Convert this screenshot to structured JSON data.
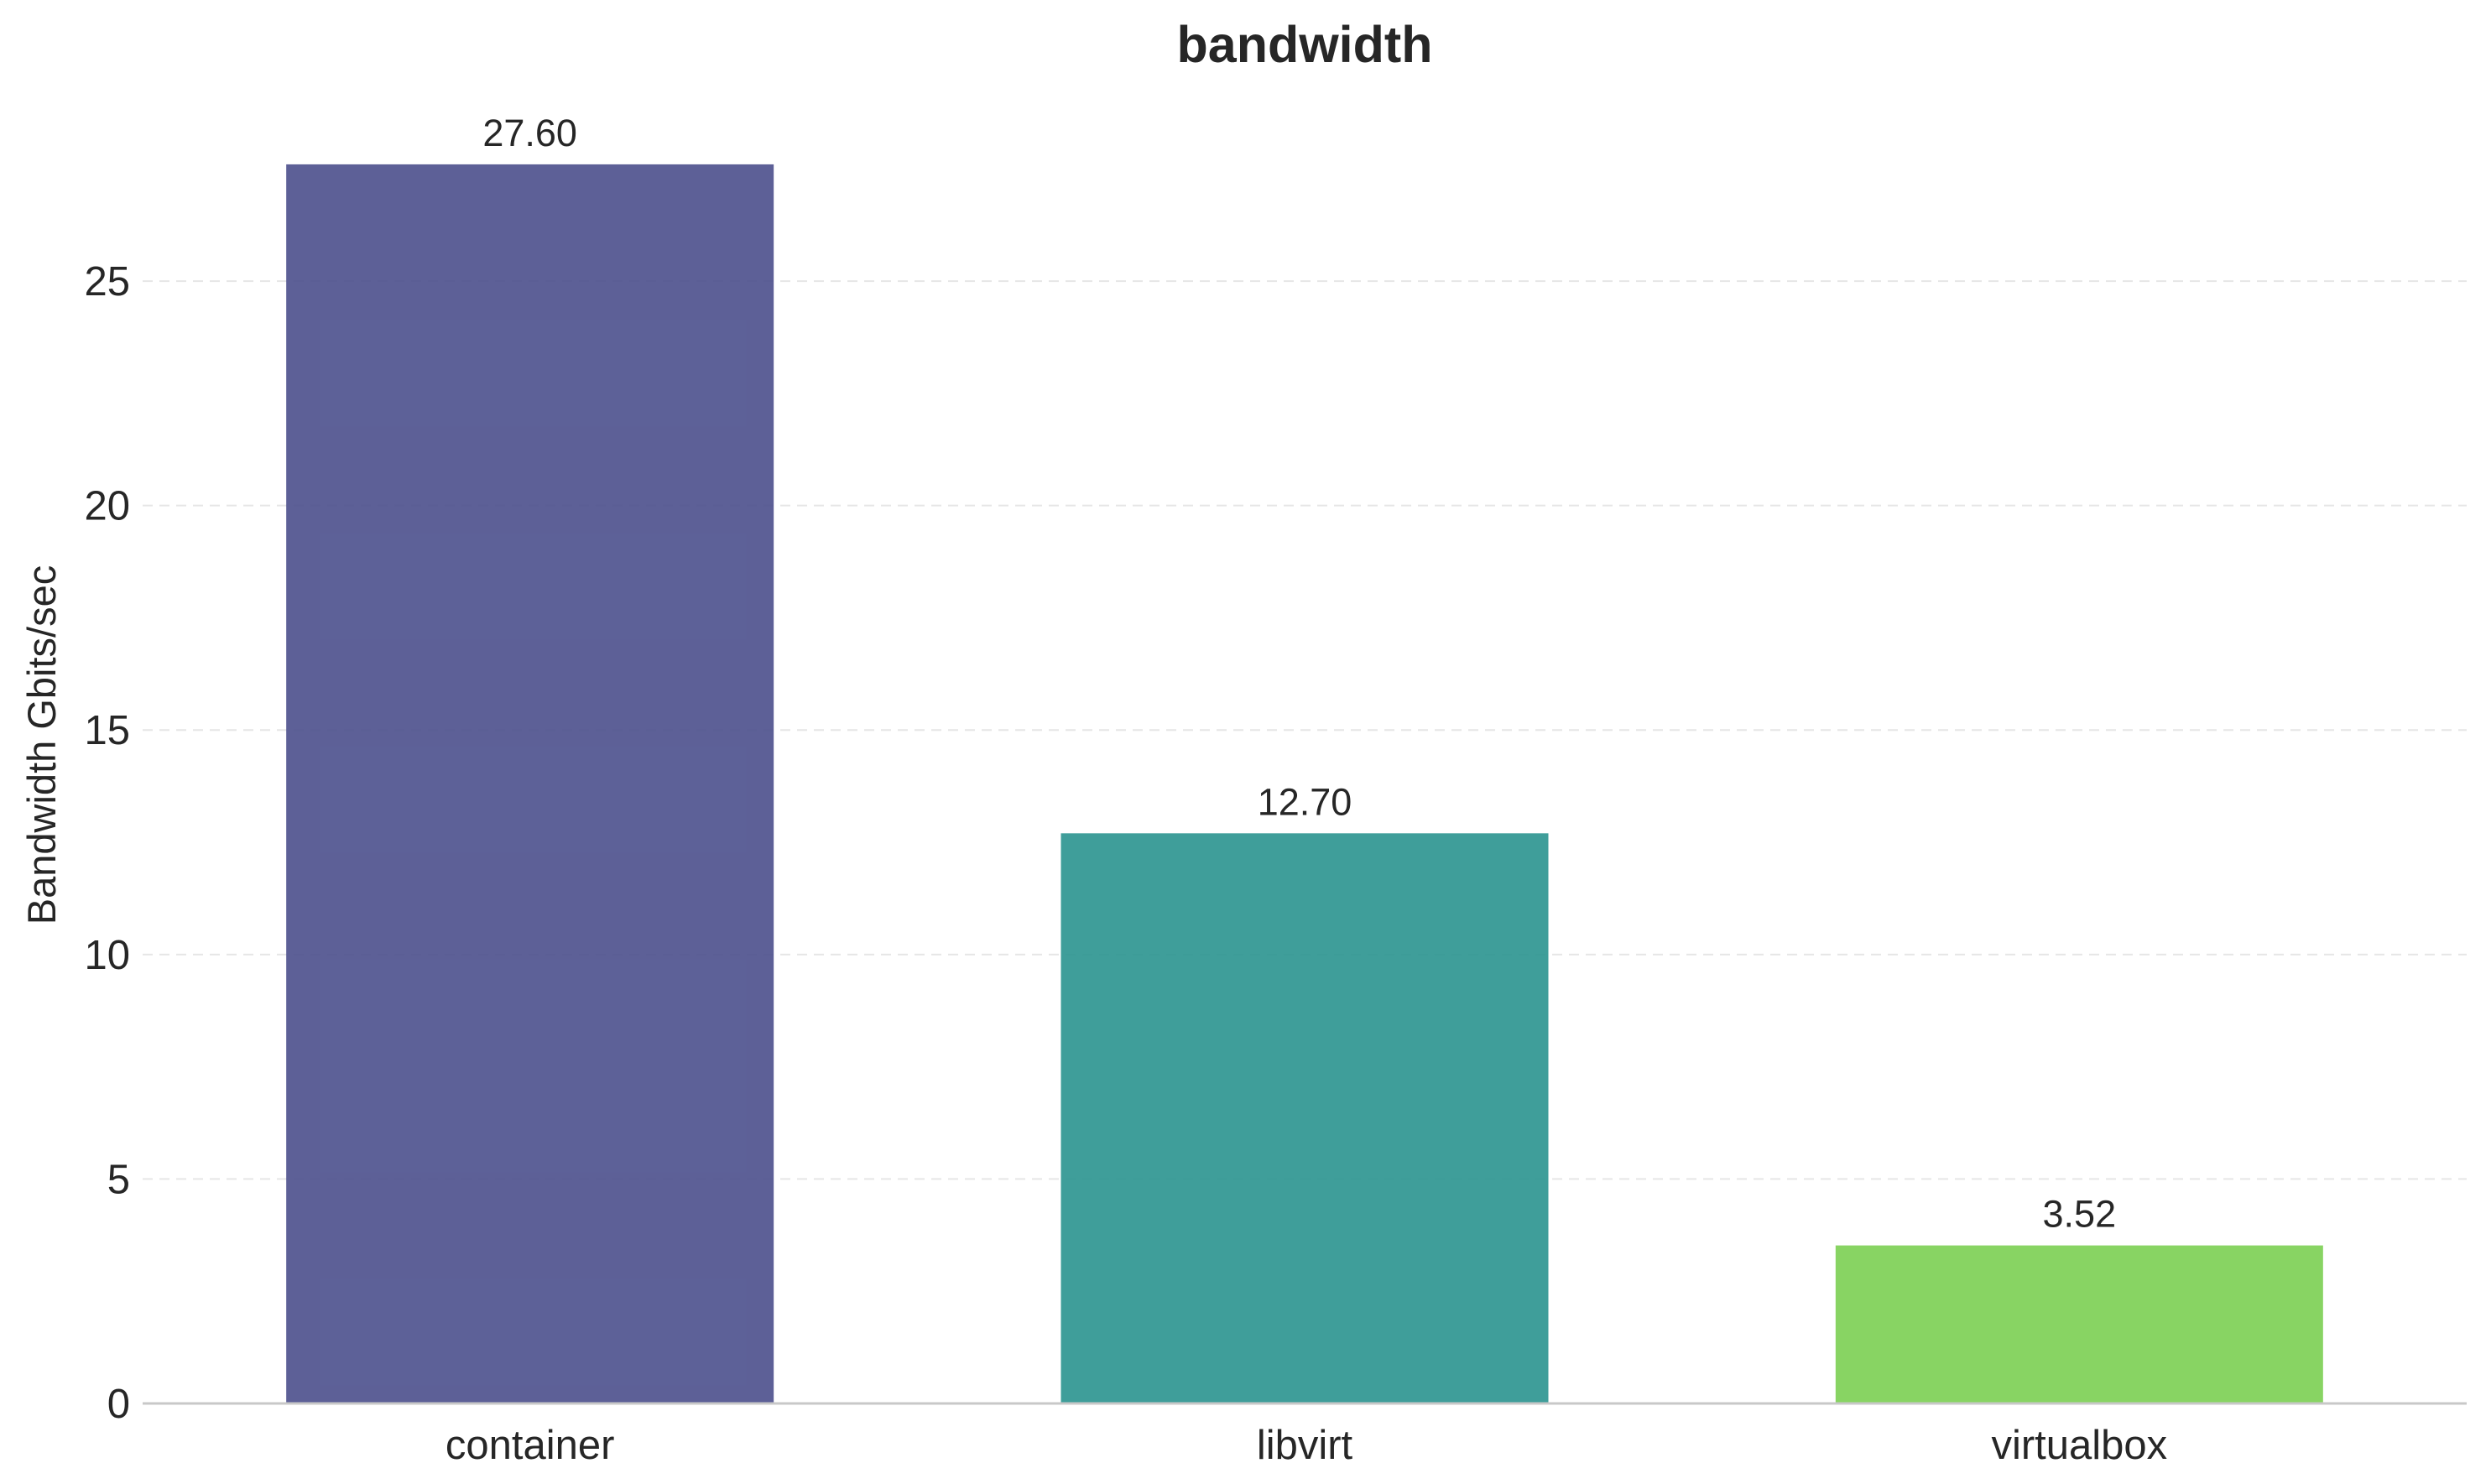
{
  "chart_data": {
    "type": "bar",
    "title": "bandwidth",
    "xlabel": "",
    "ylabel": "Bandwidth Gbits/sec",
    "categories": [
      "container",
      "libvirt",
      "virtualbox"
    ],
    "values": [
      27.6,
      12.7,
      3.52
    ],
    "value_labels": [
      "27.60",
      "12.70",
      "3.52"
    ],
    "colors": [
      "#4b4f8c",
      "#2a938f",
      "#7bcf52"
    ],
    "ylim": [
      0,
      29
    ],
    "yticks": [
      0,
      5,
      10,
      15,
      20,
      25
    ],
    "grid": "y-dashed",
    "legend": "none"
  }
}
